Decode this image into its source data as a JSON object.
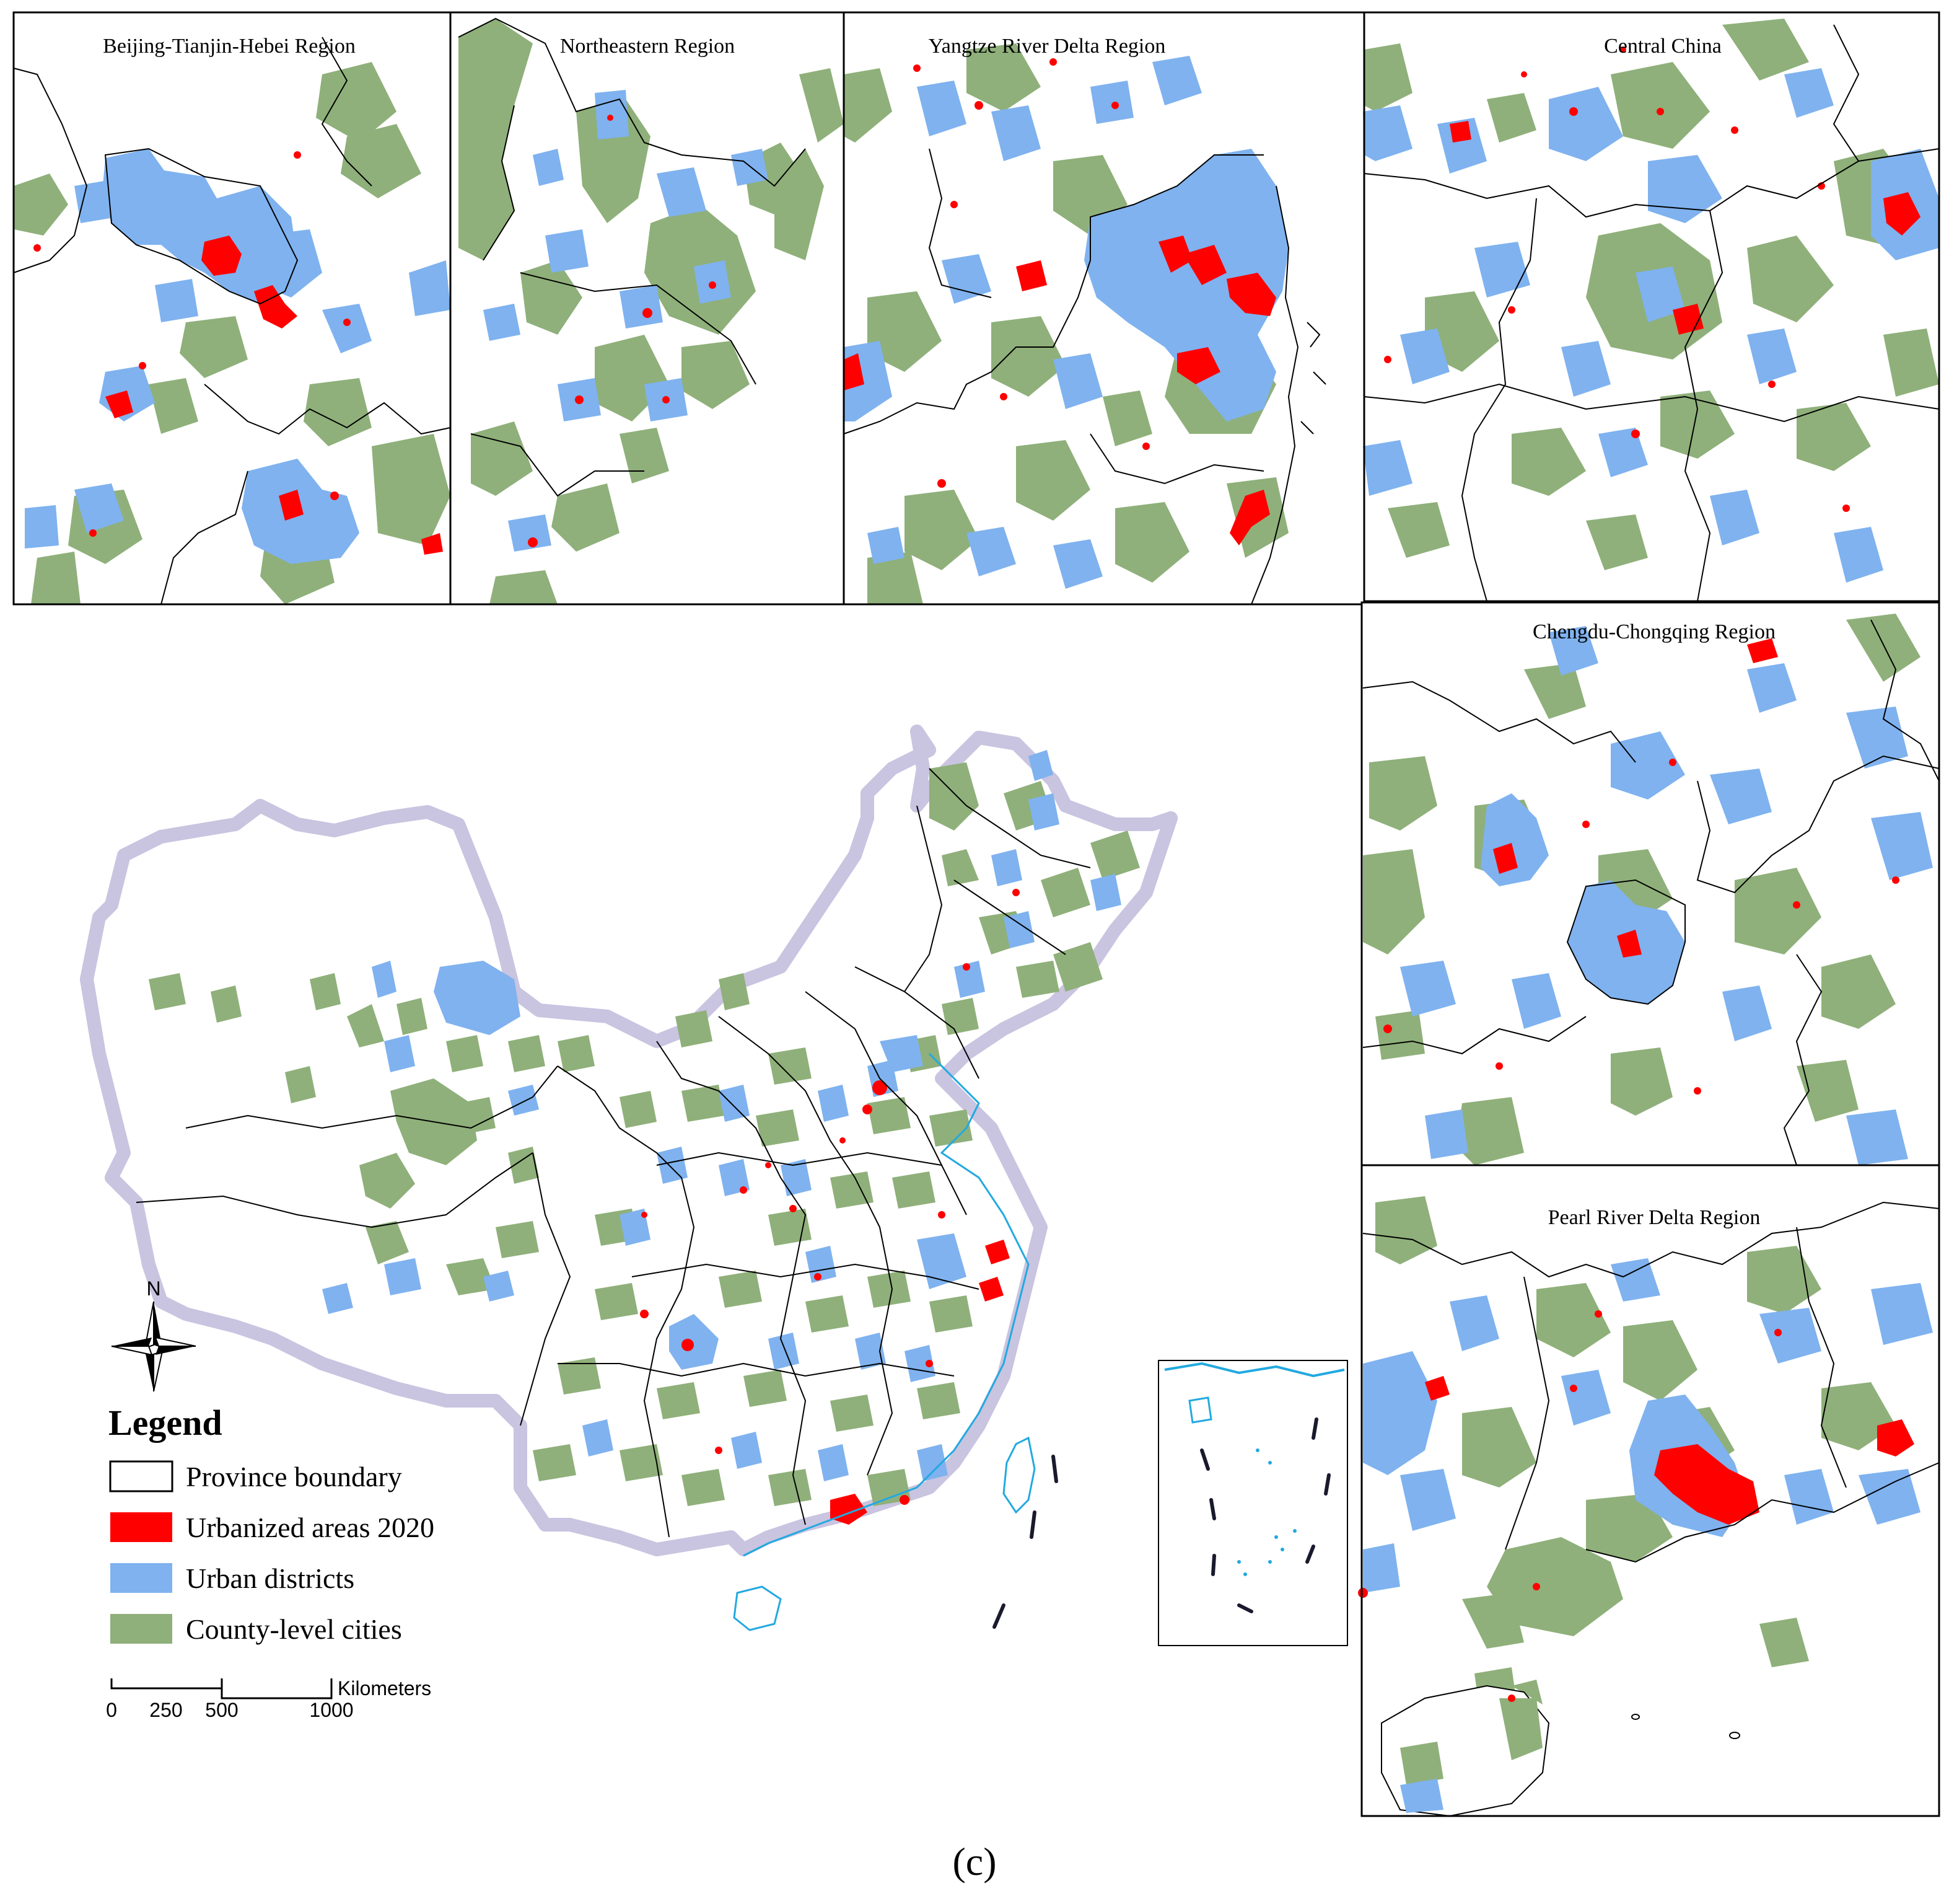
{
  "figure": {
    "caption": "(c)"
  },
  "colors": {
    "urbanized": "#ff0000",
    "urban_districts": "#7fb2ef",
    "county_cities": "#8fb07a",
    "boundary": "#000000",
    "coastline": "#22a9e0"
  },
  "panels": [
    {
      "id": "bth",
      "title": "Beijing-Tianjin-Hebei Region"
    },
    {
      "id": "ne",
      "title": "Northeastern Region"
    },
    {
      "id": "yrd",
      "title": "Yangtze River Delta Region"
    },
    {
      "id": "cc",
      "title": "Central China"
    },
    {
      "id": "chc",
      "title": "Chengdu-Chongqing Region"
    },
    {
      "id": "prd",
      "title": "Pearl River Delta Region"
    }
  ],
  "legend": {
    "title": "Legend",
    "items": [
      {
        "label": "Province boundary",
        "swatch": "#ffffff"
      },
      {
        "label": "Urbanized areas 2020",
        "swatch": "#ff0000"
      },
      {
        "label": "Urban districts",
        "swatch": "#7fb2ef"
      },
      {
        "label": "County-level cities",
        "swatch": "#8fb07a"
      }
    ]
  },
  "north_arrow": {
    "label": "N"
  },
  "scale_bar": {
    "unit": "Kilometers",
    "ticks": [
      "0",
      "250",
      "500",
      "1000"
    ]
  }
}
